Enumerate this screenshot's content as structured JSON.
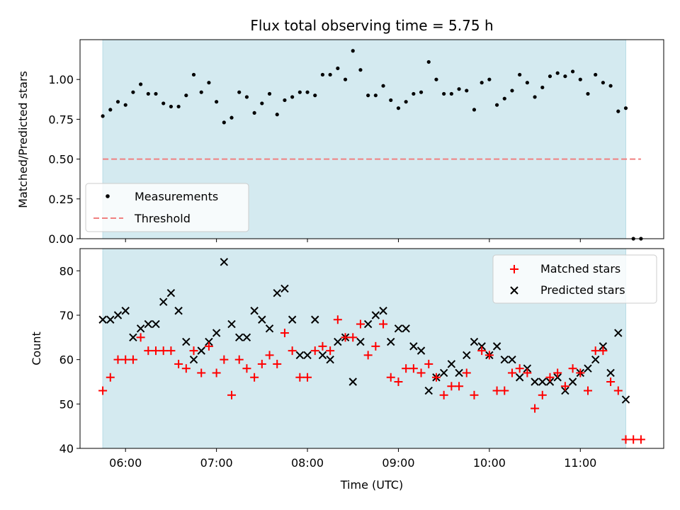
{
  "chart_data": {
    "type": "scatter",
    "title": "Flux total observing time = 5.75 h",
    "xlabel": "Time (UTC)",
    "xlim": [
      "05:30",
      "11:55"
    ],
    "xticks": [
      "06:00",
      "07:00",
      "08:00",
      "09:00",
      "10:00",
      "11:00"
    ],
    "observing_window": [
      "05:45",
      "11:30"
    ],
    "colors": {
      "window": "#d4eaf0",
      "window_edge": "#b9dce6",
      "measurement": "#000000",
      "threshold": "#f08080",
      "matched": "#ff0000",
      "predicted": "#000000"
    },
    "top_panel": {
      "ylabel": "Matched/Predicted stars",
      "ylim": [
        0.0,
        1.25
      ],
      "yticks": [
        "0.00",
        "0.25",
        "0.50",
        "0.75",
        "1.00"
      ],
      "legend": {
        "position": "lower-left",
        "entries": [
          "Measurements",
          "Threshold"
        ]
      },
      "threshold": {
        "value": 0.5,
        "x_range": [
          "05:45",
          "11:40"
        ]
      },
      "series": [
        {
          "name": "Measurements",
          "style": "dot",
          "x": [
            "05:45",
            "05:50",
            "05:55",
            "06:00",
            "06:05",
            "06:10",
            "06:15",
            "06:20",
            "06:25",
            "06:30",
            "06:35",
            "06:40",
            "06:45",
            "06:50",
            "06:55",
            "07:00",
            "07:05",
            "07:10",
            "07:15",
            "07:20",
            "07:25",
            "07:30",
            "07:35",
            "07:40",
            "07:45",
            "07:50",
            "07:55",
            "08:00",
            "08:05",
            "08:10",
            "08:15",
            "08:20",
            "08:25",
            "08:30",
            "08:35",
            "08:40",
            "08:45",
            "08:50",
            "08:55",
            "09:00",
            "09:05",
            "09:10",
            "09:15",
            "09:20",
            "09:25",
            "09:30",
            "09:35",
            "09:40",
            "09:45",
            "09:50",
            "09:55",
            "10:00",
            "10:05",
            "10:10",
            "10:15",
            "10:20",
            "10:25",
            "10:30",
            "10:35",
            "10:40",
            "10:45",
            "10:50",
            "10:55",
            "11:00",
            "11:05",
            "11:10",
            "11:15",
            "11:20",
            "11:25",
            "11:30",
            "11:35",
            "11:40"
          ],
          "y": [
            0.77,
            0.81,
            0.86,
            0.84,
            0.92,
            0.97,
            0.91,
            0.91,
            0.85,
            0.83,
            0.83,
            0.9,
            1.03,
            0.92,
            0.98,
            0.86,
            0.73,
            0.76,
            0.92,
            0.89,
            0.79,
            0.85,
            0.91,
            0.78,
            0.87,
            0.89,
            0.92,
            0.92,
            0.9,
            1.03,
            1.03,
            1.07,
            1.0,
            1.18,
            1.06,
            0.9,
            0.9,
            0.96,
            0.87,
            0.82,
            0.86,
            0.91,
            0.92,
            1.11,
            1.0,
            0.91,
            0.91,
            0.94,
            0.93,
            0.81,
            0.98,
            1.0,
            0.84,
            0.88,
            0.93,
            1.03,
            0.98,
            0.89,
            0.95,
            1.02,
            1.04,
            1.02,
            1.05,
            1.0,
            0.91,
            1.03,
            0.98,
            0.96,
            0.8,
            0.82,
            0.0,
            0.0
          ]
        }
      ]
    },
    "bottom_panel": {
      "ylabel": "Count",
      "ylim": [
        40,
        85
      ],
      "yticks": [
        "40",
        "50",
        "60",
        "70",
        "80"
      ],
      "legend": {
        "position": "top-right",
        "entries": [
          "Matched stars",
          "Predicted stars"
        ]
      },
      "series": [
        {
          "name": "Matched stars",
          "style": "plus",
          "x": [
            "05:45",
            "05:50",
            "05:55",
            "06:00",
            "06:05",
            "06:10",
            "06:15",
            "06:20",
            "06:25",
            "06:30",
            "06:35",
            "06:40",
            "06:45",
            "06:50",
            "06:55",
            "07:00",
            "07:05",
            "07:10",
            "07:15",
            "07:20",
            "07:25",
            "07:30",
            "07:35",
            "07:40",
            "07:45",
            "07:50",
            "07:55",
            "08:00",
            "08:05",
            "08:10",
            "08:15",
            "08:20",
            "08:25",
            "08:30",
            "08:35",
            "08:40",
            "08:45",
            "08:50",
            "08:55",
            "09:00",
            "09:05",
            "09:10",
            "09:15",
            "09:20",
            "09:25",
            "09:30",
            "09:35",
            "09:40",
            "09:45",
            "09:50",
            "09:55",
            "10:00",
            "10:05",
            "10:10",
            "10:15",
            "10:20",
            "10:25",
            "10:30",
            "10:35",
            "10:40",
            "10:45",
            "10:50",
            "10:55",
            "11:00",
            "11:05",
            "11:10",
            "11:15",
            "11:20",
            "11:25",
            "11:30",
            "11:35",
            "11:40"
          ],
          "y": [
            53,
            56,
            60,
            60,
            60,
            65,
            62,
            62,
            62,
            62,
            59,
            58,
            62,
            57,
            63,
            57,
            60,
            52,
            60,
            58,
            56,
            59,
            61,
            59,
            66,
            62,
            56,
            56,
            62,
            63,
            62,
            69,
            65,
            65,
            68,
            61,
            63,
            68,
            56,
            55,
            58,
            58,
            57,
            59,
            56,
            52,
            54,
            54,
            57,
            52,
            62,
            61,
            53,
            53,
            57,
            58,
            57,
            49,
            52,
            56,
            57,
            54,
            58,
            57,
            53,
            62,
            62,
            55,
            53,
            42,
            42,
            42
          ]
        },
        {
          "name": "Predicted stars",
          "style": "x",
          "x": [
            "05:45",
            "05:50",
            "05:55",
            "06:00",
            "06:05",
            "06:10",
            "06:15",
            "06:20",
            "06:25",
            "06:30",
            "06:35",
            "06:40",
            "06:45",
            "06:50",
            "06:55",
            "07:00",
            "07:05",
            "07:10",
            "07:15",
            "07:20",
            "07:25",
            "07:30",
            "07:35",
            "07:40",
            "07:45",
            "07:50",
            "07:55",
            "08:00",
            "08:05",
            "08:10",
            "08:15",
            "08:20",
            "08:25",
            "08:30",
            "08:35",
            "08:40",
            "08:45",
            "08:50",
            "08:55",
            "09:00",
            "09:05",
            "09:10",
            "09:15",
            "09:20",
            "09:25",
            "09:30",
            "09:35",
            "09:40",
            "09:45",
            "09:50",
            "09:55",
            "10:00",
            "10:05",
            "10:10",
            "10:15",
            "10:20",
            "10:25",
            "10:30",
            "10:35",
            "10:40",
            "10:45",
            "10:50",
            "10:55",
            "11:00",
            "11:05",
            "11:10",
            "11:15",
            "11:20",
            "11:25",
            "11:30"
          ],
          "y": [
            69,
            69,
            70,
            71,
            65,
            67,
            68,
            68,
            73,
            75,
            71,
            64,
            60,
            62,
            64,
            66,
            82,
            68,
            65,
            65,
            71,
            69,
            67,
            75,
            76,
            69,
            61,
            61,
            69,
            61,
            60,
            64,
            65,
            55,
            64,
            68,
            70,
            71,
            64,
            67,
            67,
            63,
            62,
            53,
            56,
            57,
            59,
            57,
            61,
            64,
            63,
            61,
            63,
            60,
            60,
            56,
            58,
            55,
            55,
            55,
            56,
            53,
            55,
            57,
            58,
            60,
            63,
            57,
            66,
            51
          ]
        }
      ]
    }
  }
}
